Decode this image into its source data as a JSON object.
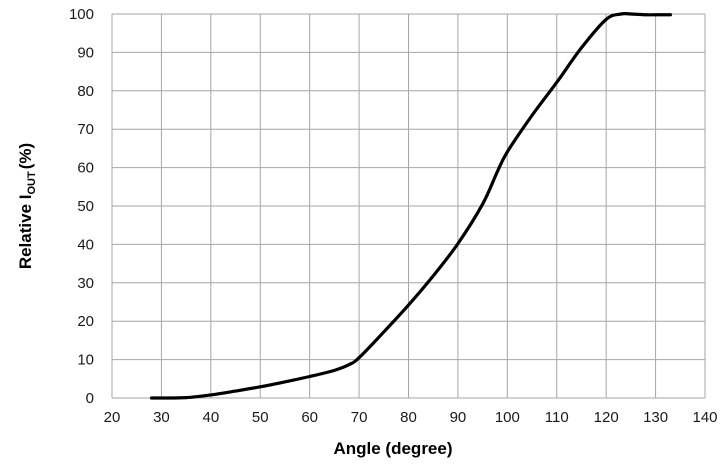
{
  "chart_data": {
    "type": "line",
    "title": "",
    "xlabel": "Angle (degree)",
    "ylabel": {
      "main": "Relative I",
      "subscript": "OUT",
      "unit": "(%)"
    },
    "xlim": [
      20,
      140
    ],
    "ylim": [
      0,
      100
    ],
    "x_ticks": [
      "20",
      "30",
      "40",
      "50",
      "60",
      "70",
      "80",
      "90",
      "100",
      "110",
      "120",
      "130",
      "140"
    ],
    "y_ticks": [
      "0",
      "10",
      "20",
      "30",
      "40",
      "50",
      "60",
      "70",
      "80",
      "90",
      "100"
    ],
    "grid": true,
    "legend": false,
    "line_color": "#000000",
    "grid_color": "#a6a6a6",
    "series": [
      {
        "x": [
          28,
          30,
          35,
          40,
          45,
          50,
          55,
          60,
          65,
          68,
          70,
          75,
          80,
          85,
          90,
          95,
          98,
          100,
          105,
          110,
          115,
          120,
          123,
          125,
          128,
          130,
          133
        ],
        "y": [
          0,
          0,
          0.1,
          0.8,
          1.8,
          2.9,
          4.2,
          5.6,
          7.2,
          8.7,
          10.5,
          17.2,
          24.2,
          31.8,
          40.2,
          50.5,
          59,
          64.1,
          73.6,
          82.2,
          91.2,
          98.6,
          100,
          100,
          99.8,
          99.8,
          99.8
        ]
      }
    ]
  }
}
